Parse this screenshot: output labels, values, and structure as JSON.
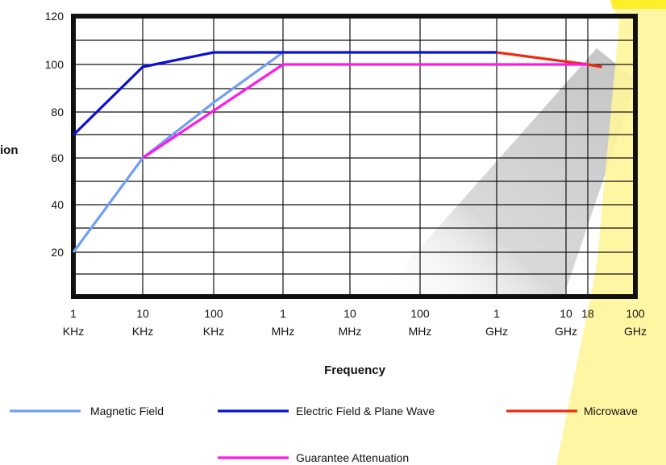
{
  "chart_data": {
    "type": "line",
    "xlabel": "Frequency",
    "ylabel_fragment": "ion",
    "ylim": [
      0,
      120
    ],
    "y_ticks": [
      20,
      40,
      60,
      80,
      100,
      120
    ],
    "x_scale": "log",
    "x_ticks": [
      {
        "value": "1 KHz",
        "line1": "1",
        "line2": "KHz"
      },
      {
        "value": "10 KHz",
        "line1": "10",
        "line2": "KHz"
      },
      {
        "value": "100 KHz",
        "line1": "100",
        "line2": "KHz"
      },
      {
        "value": "1 MHz",
        "line1": "1",
        "line2": "MHz"
      },
      {
        "value": "10 MHz",
        "line1": "10",
        "line2": "MHz"
      },
      {
        "value": "100 MHz",
        "line1": "100",
        "line2": "MHz"
      },
      {
        "value": "1 GHz",
        "line1": "1",
        "line2": "GHz"
      },
      {
        "value": "10 GHz",
        "line1": "10",
        "line2": "GHz"
      },
      {
        "value": "18 GHz",
        "line1": "18",
        "line2": ""
      },
      {
        "value": "100 GHz",
        "line1": "100",
        "line2": "GHz"
      }
    ],
    "series": [
      {
        "name": "Magnetic Field",
        "color": "#6fa0f2",
        "x": [
          "1 KHz",
          "10 KHz",
          "100 KHz",
          "1 MHz"
        ],
        "values": [
          20,
          60,
          84,
          105
        ]
      },
      {
        "name": "Electric Field & Plane Wave",
        "color": "#0a10d8",
        "x": [
          "1 KHz",
          "10 KHz",
          "100 KHz",
          "1 GHz"
        ],
        "values": [
          70,
          99,
          105,
          105
        ]
      },
      {
        "name": "Microwave",
        "color": "#ee2a10",
        "x": [
          "1 GHz",
          "18 GHz",
          "30 GHz"
        ],
        "values": [
          105,
          100,
          99
        ]
      },
      {
        "name": "Guarantee Attenuation",
        "color": "#ff18e8",
        "x": [
          "10 KHz",
          "1 MHz",
          "18 GHz"
        ],
        "values": [
          60,
          100,
          100
        ]
      }
    ],
    "legend_placement": "bottom",
    "grid": true
  }
}
